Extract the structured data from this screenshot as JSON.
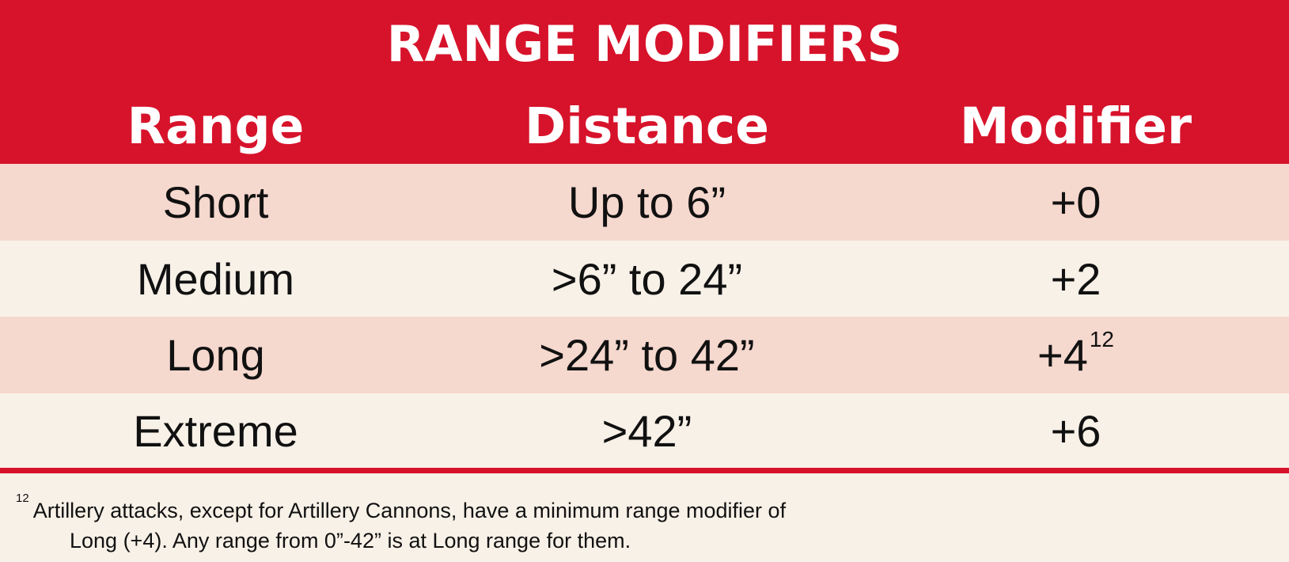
{
  "table": {
    "title": "RANGE MODIFIERS",
    "headers": [
      "Range",
      "Distance",
      "Modifier"
    ],
    "rows": [
      {
        "range": "Short",
        "distance": "Up to 6”",
        "modifier": "+0",
        "note": ""
      },
      {
        "range": "Medium",
        "distance": ">6” to 24”",
        "modifier": "+2",
        "note": ""
      },
      {
        "range": "Long",
        "distance": ">24” to 42”",
        "modifier": "+4",
        "note": "12"
      },
      {
        "range": "Extreme",
        "distance": ">42”",
        "modifier": "+6",
        "note": ""
      }
    ],
    "colors": {
      "header": "#d7132b",
      "row_odd": "#f5d8ce",
      "row_even": "#f8f1e8",
      "text": "#111111"
    }
  },
  "footnote": {
    "marker": "12",
    "line1": "Artillery attacks, except for Artillery Cannons, have a minimum range modifier of",
    "line2": "Long (+4). Any range from 0”-42” is at Long range for them."
  }
}
